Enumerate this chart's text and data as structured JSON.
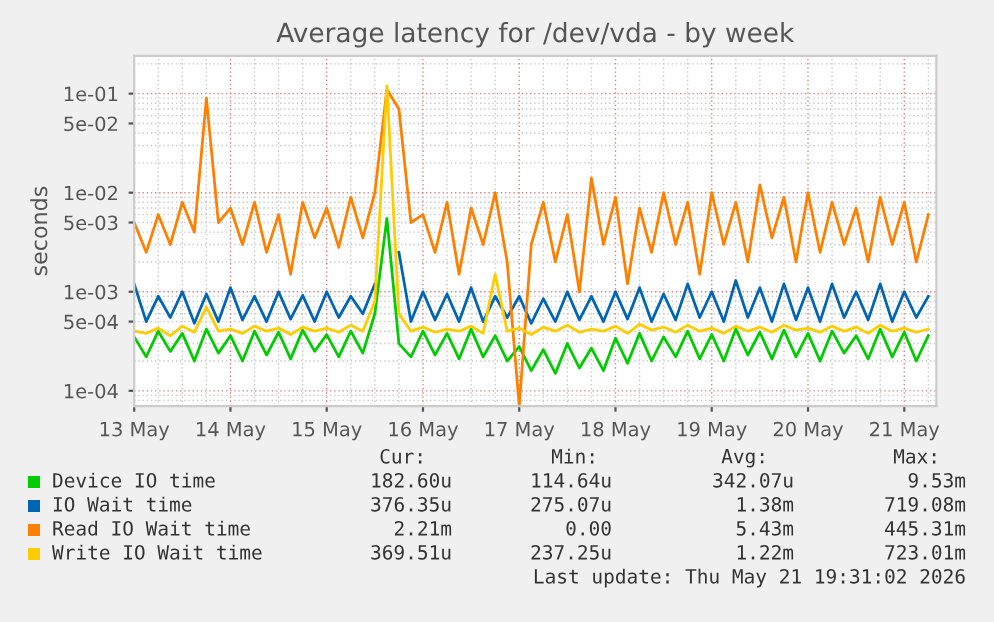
{
  "chart_data": {
    "type": "line",
    "title": "Average latency for /dev/vda - by week",
    "ylabel": "seconds",
    "log": true,
    "grid": true,
    "legend": "bottom",
    "xlim": [
      "2026-05-13T00:00",
      "2026-05-21T08:00"
    ],
    "xticks": [
      {
        "value": "2026-05-13",
        "label": "13 May"
      },
      {
        "value": "2026-05-14",
        "label": "14 May"
      },
      {
        "value": "2026-05-15",
        "label": "15 May"
      },
      {
        "value": "2026-05-16",
        "label": "16 May"
      },
      {
        "value": "2026-05-17",
        "label": "17 May"
      },
      {
        "value": "2026-05-18",
        "label": "18 May"
      },
      {
        "value": "2026-05-19",
        "label": "19 May"
      },
      {
        "value": "2026-05-20",
        "label": "20 May"
      },
      {
        "value": "2026-05-21",
        "label": "21 May"
      }
    ],
    "ylim": [
      7e-05,
      0.24
    ],
    "yticks": [
      {
        "value": 0.0001,
        "label": "1e-04"
      },
      {
        "value": 0.0005,
        "label": "5e-04"
      },
      {
        "value": 0.001,
        "label": "1e-03"
      },
      {
        "value": 0.005,
        "label": "5e-03"
      },
      {
        "value": 0.01,
        "label": "1e-02"
      },
      {
        "value": 0.05,
        "label": "5e-02"
      },
      {
        "value": 0.1,
        "label": "1e-01"
      }
    ],
    "x": [
      "2026-05-13T00:00",
      "2026-05-13T03:00",
      "2026-05-13T06:00",
      "2026-05-13T09:00",
      "2026-05-13T12:00",
      "2026-05-13T15:00",
      "2026-05-13T18:00",
      "2026-05-13T21:00",
      "2026-05-14T00:00",
      "2026-05-14T03:00",
      "2026-05-14T06:00",
      "2026-05-14T09:00",
      "2026-05-14T12:00",
      "2026-05-14T15:00",
      "2026-05-14T18:00",
      "2026-05-14T21:00",
      "2026-05-15T00:00",
      "2026-05-15T03:00",
      "2026-05-15T06:00",
      "2026-05-15T09:00",
      "2026-05-15T12:00",
      "2026-05-15T15:00",
      "2026-05-15T18:00",
      "2026-05-15T21:00",
      "2026-05-16T00:00",
      "2026-05-16T03:00",
      "2026-05-16T06:00",
      "2026-05-16T09:00",
      "2026-05-16T12:00",
      "2026-05-16T15:00",
      "2026-05-16T18:00",
      "2026-05-16T21:00",
      "2026-05-17T00:00",
      "2026-05-17T03:00",
      "2026-05-17T06:00",
      "2026-05-17T09:00",
      "2026-05-17T12:00",
      "2026-05-17T15:00",
      "2026-05-17T18:00",
      "2026-05-17T21:00",
      "2026-05-18T00:00",
      "2026-05-18T03:00",
      "2026-05-18T06:00",
      "2026-05-18T09:00",
      "2026-05-18T12:00",
      "2026-05-18T15:00",
      "2026-05-18T18:00",
      "2026-05-18T21:00",
      "2026-05-19T00:00",
      "2026-05-19T03:00",
      "2026-05-19T06:00",
      "2026-05-19T09:00",
      "2026-05-19T12:00",
      "2026-05-19T15:00",
      "2026-05-19T18:00",
      "2026-05-19T21:00",
      "2026-05-20T00:00",
      "2026-05-20T03:00",
      "2026-05-20T06:00",
      "2026-05-20T09:00",
      "2026-05-20T12:00",
      "2026-05-20T15:00",
      "2026-05-20T18:00",
      "2026-05-20T21:00",
      "2026-05-21T00:00",
      "2026-05-21T03:00",
      "2026-05-21T06:00"
    ],
    "series": [
      {
        "name": "Device IO time",
        "color": "#00cc00",
        "values": [
          0.00035,
          0.00022,
          0.0004,
          0.00025,
          0.00038,
          0.0002,
          0.00042,
          0.00024,
          0.00036,
          0.0002,
          0.0004,
          0.00023,
          0.00039,
          0.00021,
          0.00041,
          0.00025,
          0.00037,
          0.00022,
          0.0004,
          0.00024,
          0.0006,
          0.0055,
          0.0003,
          0.00022,
          0.0004,
          0.00023,
          0.00038,
          0.00021,
          0.00042,
          0.00022,
          0.00036,
          0.0002,
          0.00028,
          0.00016,
          0.00026,
          0.00015,
          0.0003,
          0.00017,
          0.00027,
          0.00016,
          0.00034,
          0.00019,
          0.00038,
          0.0002,
          0.00035,
          0.00022,
          0.0004,
          0.00021,
          0.00037,
          0.0002,
          0.00042,
          0.00023,
          0.00039,
          0.00021,
          0.00041,
          0.00022,
          0.00038,
          0.0002,
          0.0004,
          0.00024,
          0.00036,
          0.00021,
          0.00042,
          0.00022,
          0.00039,
          0.0002,
          0.00036
        ]
      },
      {
        "name": "IO Wait time",
        "color": "#0066b3",
        "values": [
          0.0012,
          0.0005,
          0.0009,
          0.00055,
          0.001,
          0.00048,
          0.00095,
          0.0005,
          0.0011,
          0.00052,
          0.0009,
          0.0005,
          0.001,
          0.00053,
          0.00092,
          0.0005,
          0.001,
          0.00055,
          0.0009,
          0.0006,
          0.0012,
          null,
          0.0025,
          0.0005,
          0.001,
          0.00052,
          0.00095,
          0.0005,
          0.0011,
          0.0005,
          0.0009,
          0.00055,
          0.0009,
          0.00048,
          0.00085,
          0.0005,
          0.001,
          0.00052,
          0.0009,
          0.0005,
          0.001,
          0.00053,
          0.0011,
          0.0005,
          0.00095,
          0.00052,
          0.0012,
          0.00055,
          0.001,
          0.0005,
          0.0013,
          0.00055,
          0.0011,
          0.0005,
          0.0012,
          0.00052,
          0.0011,
          0.0005,
          0.0012,
          0.00055,
          0.001,
          0.00052,
          0.0012,
          0.0005,
          0.001,
          0.00055,
          0.0009
        ]
      },
      {
        "name": "Read IO Wait time",
        "color": "#ff8000",
        "values": [
          0.005,
          0.0025,
          0.006,
          0.003,
          0.008,
          0.004,
          0.09,
          0.005,
          0.007,
          0.003,
          0.008,
          0.0025,
          0.006,
          0.0015,
          0.008,
          0.0035,
          0.007,
          0.0028,
          0.009,
          0.0035,
          0.01,
          0.11,
          0.07,
          0.005,
          0.006,
          0.0025,
          0.008,
          0.0015,
          0.007,
          0.003,
          0.01,
          0.002,
          7e-05,
          0.003,
          0.008,
          0.002,
          0.006,
          0.001,
          0.014,
          0.003,
          0.009,
          0.0012,
          0.007,
          0.0025,
          0.01,
          0.003,
          0.008,
          0.0015,
          0.01,
          0.003,
          0.008,
          0.002,
          0.012,
          0.0035,
          0.009,
          0.002,
          0.01,
          0.0025,
          0.008,
          0.003,
          0.007,
          0.002,
          0.009,
          0.003,
          0.008,
          0.002,
          0.006
        ]
      },
      {
        "name": "Write IO Wait time",
        "color": "#ffcc00",
        "values": [
          0.0004,
          0.00038,
          0.00043,
          0.00036,
          0.00045,
          0.00039,
          0.0007,
          0.0004,
          0.00042,
          0.00038,
          0.00045,
          0.0004,
          0.00043,
          0.00037,
          0.00044,
          0.0004,
          0.00043,
          0.00039,
          0.00046,
          0.0004,
          0.0008,
          0.12,
          0.0006,
          0.0004,
          0.00044,
          0.00039,
          0.00042,
          0.0004,
          0.00045,
          0.00038,
          0.0015,
          0.0004,
          0.00043,
          0.00037,
          0.00044,
          0.0004,
          0.00046,
          0.00039,
          0.00042,
          0.0004,
          0.00045,
          0.00038,
          0.00047,
          0.00041,
          0.00044,
          0.00039,
          0.00046,
          0.0004,
          0.00043,
          0.00038,
          0.00045,
          0.0004,
          0.00044,
          0.00039,
          0.00046,
          0.00041,
          0.00043,
          0.00039,
          0.00045,
          0.0004,
          0.00044,
          0.00038,
          0.00046,
          0.0004,
          0.00043,
          0.00039,
          0.00042
        ]
      }
    ],
    "annotations": [
      "Cur:",
      "Min:",
      "Avg:",
      "Max:",
      "182.60u",
      "114.64u",
      "342.07u",
      "9.53m",
      "376.35u",
      "275.07u",
      "1.38m",
      "719.08m",
      "2.21m",
      "0.00",
      "5.43m",
      "445.31m",
      "369.51u",
      "237.25u",
      "1.22m",
      "723.01m",
      "Last update: Thu May 21 19:31:02 2026"
    ]
  }
}
